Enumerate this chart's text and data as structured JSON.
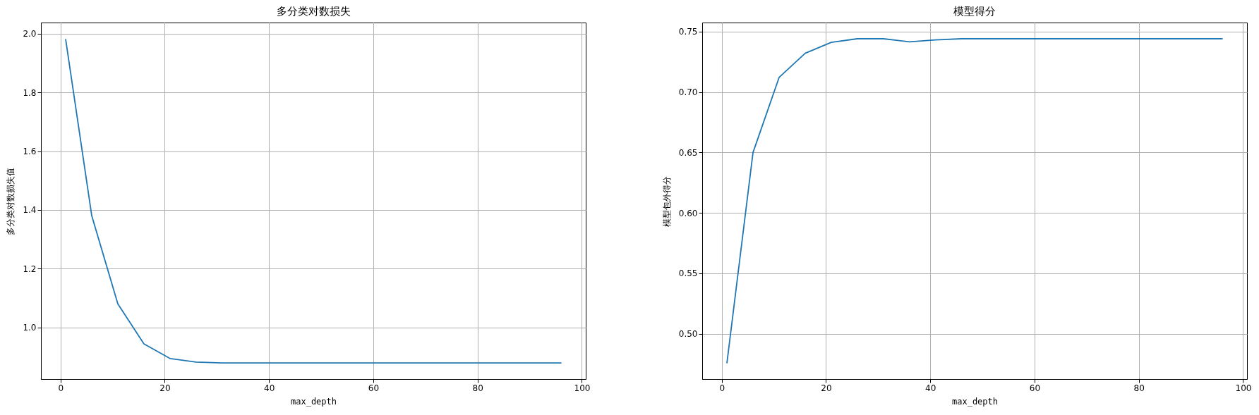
{
  "chart_data": [
    {
      "type": "line",
      "title": "多分类对数损失",
      "xlabel": "max_depth",
      "ylabel": "多分类对数损失值",
      "x": [
        1,
        6,
        11,
        16,
        21,
        26,
        31,
        36,
        41,
        46,
        51,
        56,
        61,
        66,
        71,
        76,
        81,
        86,
        91,
        96
      ],
      "series": [
        {
          "color": "#1f77b4",
          "values": [
            1.98,
            1.38,
            1.08,
            0.944,
            0.894,
            0.882,
            0.879,
            0.879,
            0.879,
            0.879,
            0.879,
            0.879,
            0.879,
            0.879,
            0.879,
            0.879,
            0.879,
            0.879,
            0.879,
            0.879
          ]
        }
      ],
      "xlim": [
        -3.75,
        100.75
      ],
      "xticks": [
        0,
        20,
        40,
        60,
        80,
        100
      ],
      "ylim": [
        0.824,
        2.038
      ],
      "yticks": [
        {
          "value": 1,
          "label": "1.0"
        },
        1.2,
        1.4,
        1.6,
        1.8,
        {
          "value": 2,
          "label": "2.0"
        }
      ],
      "grid": true
    },
    {
      "type": "line",
      "title": "模型得分",
      "xlabel": "max_depth",
      "ylabel": "模型包外得分",
      "x": [
        1,
        6,
        11,
        16,
        21,
        26,
        31,
        36,
        41,
        46,
        51,
        56,
        61,
        66,
        71,
        76,
        81,
        86,
        91,
        96
      ],
      "series": [
        {
          "color": "#1f77b4",
          "values": [
            0.476,
            0.65,
            0.712,
            0.732,
            0.741,
            0.744,
            0.744,
            0.7415,
            0.743,
            0.744,
            0.744,
            0.744,
            0.744,
            0.744,
            0.744,
            0.744,
            0.744,
            0.744,
            0.744,
            0.744
          ]
        }
      ],
      "xlim": [
        -3.75,
        100.75
      ],
      "xticks": [
        0,
        20,
        40,
        60,
        80,
        100
      ],
      "ylim": [
        0.4626,
        0.7574
      ],
      "yticks": [
        {
          "value": 0.5,
          "label": "0.50"
        },
        0.55,
        {
          "value": 0.6,
          "label": "0.60"
        },
        0.65,
        {
          "value": 0.7,
          "label": "0.70"
        },
        0.75
      ],
      "grid": true
    }
  ]
}
